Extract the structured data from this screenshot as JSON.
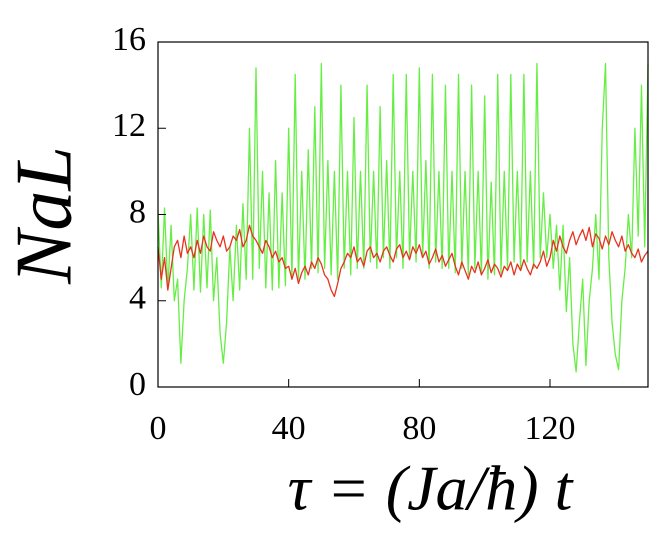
{
  "chart_data": {
    "type": "line",
    "xlabel": "τ = (Ja/ħ) t",
    "ylabel": "NaL",
    "xlim": [
      0,
      150
    ],
    "ylim": [
      0,
      16
    ],
    "xticks": [
      0,
      40,
      80,
      120
    ],
    "yticks": [
      0,
      4,
      8,
      12,
      16
    ],
    "grid": false,
    "x": [
      0,
      1,
      2,
      3,
      4,
      5,
      6,
      7,
      8,
      9,
      10,
      11,
      12,
      13,
      14,
      15,
      16,
      17,
      18,
      19,
      20,
      21,
      22,
      23,
      24,
      25,
      26,
      27,
      28,
      29,
      30,
      31,
      32,
      33,
      34,
      35,
      36,
      37,
      38,
      39,
      40,
      41,
      42,
      43,
      44,
      45,
      46,
      47,
      48,
      49,
      50,
      51,
      52,
      53,
      54,
      55,
      56,
      57,
      58,
      59,
      60,
      61,
      62,
      63,
      64,
      65,
      66,
      67,
      68,
      69,
      70,
      71,
      72,
      73,
      74,
      75,
      76,
      77,
      78,
      79,
      80,
      81,
      82,
      83,
      84,
      85,
      86,
      87,
      88,
      89,
      90,
      91,
      92,
      93,
      94,
      95,
      96,
      97,
      98,
      99,
      100,
      101,
      102,
      103,
      104,
      105,
      106,
      107,
      108,
      109,
      110,
      111,
      112,
      113,
      114,
      115,
      116,
      117,
      118,
      119,
      120,
      121,
      122,
      123,
      124,
      125,
      126,
      127,
      128,
      129,
      130,
      131,
      132,
      133,
      134,
      135,
      136,
      137,
      138,
      139,
      140,
      141,
      142,
      143,
      144,
      145,
      146,
      147,
      148,
      149,
      150
    ],
    "series": [
      {
        "color": "#66ee44",
        "values": [
          8.2,
          4.6,
          8.3,
          4.5,
          7.5,
          4,
          5,
          1.1,
          4,
          5.5,
          8,
          4.5,
          8.3,
          4.4,
          8,
          4.6,
          8.2,
          4,
          6,
          2.5,
          1.1,
          3,
          6.5,
          4,
          7.5,
          4.5,
          8.5,
          5,
          12,
          5,
          14.8,
          5.5,
          10,
          4.6,
          9,
          4.5,
          10.5,
          4.6,
          9,
          4.7,
          12,
          5,
          14.5,
          5,
          10,
          5,
          11,
          5.5,
          13,
          5.3,
          15,
          5.5,
          10.5,
          5.2,
          10,
          5,
          14,
          5.5,
          10,
          5.2,
          12.5,
          5.5,
          10,
          5.5,
          14,
          5.8,
          10,
          5.5,
          13,
          6,
          10.5,
          5.5,
          14.5,
          6,
          10,
          5.5,
          14.5,
          6,
          10,
          5.8,
          14.8,
          6,
          10.5,
          5.5,
          14.5,
          5.8,
          10,
          5.5,
          14,
          5.5,
          10,
          5.3,
          14.5,
          5.5,
          10,
          5.2,
          14,
          5.5,
          10,
          5.2,
          13.5,
          5,
          9.5,
          5.2,
          14.5,
          5.3,
          10,
          5.5,
          14.5,
          5.8,
          10,
          5.5,
          14.5,
          5.8,
          10,
          5.5,
          15,
          6,
          9,
          6,
          8,
          5.5,
          7.5,
          4.5,
          7.5,
          3.5,
          6,
          2,
          0.7,
          3,
          5,
          1,
          4,
          5.5,
          8,
          5,
          12,
          15,
          6,
          3,
          1.5,
          0.8,
          4,
          5.5,
          8,
          6,
          12,
          7,
          14,
          6.5,
          15
        ]
      },
      {
        "color": "#e8321e",
        "values": [
          6.5,
          5,
          6,
          4.5,
          5.5,
          6.5,
          6.8,
          6,
          7,
          6.2,
          6.5,
          6,
          6.8,
          6.2,
          7,
          6.5,
          6.3,
          7.2,
          6.8,
          6.5,
          7,
          6.3,
          6.5,
          7,
          6.8,
          7.3,
          6.5,
          6.8,
          7.5,
          7,
          6.8,
          6.5,
          6.2,
          6.8,
          6.5,
          6,
          6.3,
          5.8,
          6,
          5.5,
          5.6,
          5,
          5.5,
          4.8,
          5.3,
          5.6,
          5.2,
          5.8,
          5.5,
          6,
          5.7,
          5.2,
          5,
          4.5,
          4.2,
          4.8,
          5.5,
          5.8,
          6.2,
          6,
          6.5,
          5.8,
          6,
          5.6,
          6.3,
          6.5,
          6,
          6.2,
          5.8,
          6.3,
          6.5,
          6.1,
          5.8,
          6.4,
          6.6,
          6,
          6.3,
          5.9,
          6.5,
          6.2,
          6.6,
          6,
          6.3,
          5.7,
          6,
          6.4,
          5.8,
          6.1,
          5.6,
          5.9,
          6.2,
          5.6,
          5.2,
          5.8,
          5.4,
          5,
          5.6,
          5.3,
          5.8,
          5.2,
          5.5,
          5.9,
          5.3,
          5.7,
          5.5,
          5.1,
          5.6,
          5.4,
          5.8,
          5.2,
          5.7,
          5.4,
          5.9,
          5.5,
          5.2,
          5.7,
          5.5,
          5.8,
          6.3,
          5.6,
          6,
          6.8,
          6.3,
          7,
          6.5,
          6.2,
          6.8,
          7.2,
          6.6,
          7,
          7.3,
          6.8,
          7.4,
          6.5,
          7.1,
          6.9,
          6.4,
          7,
          6.6,
          7.2,
          6.8,
          6.5,
          7,
          6.3,
          6.6,
          6.2,
          6,
          6.4,
          5.8,
          6.1,
          6.3
        ]
      }
    ]
  }
}
